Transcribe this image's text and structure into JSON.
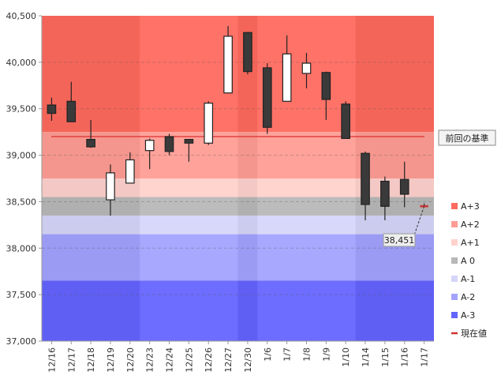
{
  "chart_data": {
    "type": "candlestick",
    "categories": [
      "12/16",
      "12/17",
      "12/18",
      "12/19",
      "12/20",
      "12/23",
      "12/24",
      "12/25",
      "12/26",
      "12/27",
      "12/30",
      "1/6",
      "1/7",
      "1/8",
      "1/9",
      "1/10",
      "1/14",
      "1/15",
      "1/16",
      "1/17"
    ],
    "candles": [
      {
        "date": "12/16",
        "open": 39540,
        "high": 39620,
        "low": 39370,
        "close": 39450
      },
      {
        "date": "12/17",
        "open": 39580,
        "high": 39790,
        "low": 39360,
        "close": 39360
      },
      {
        "date": "12/18",
        "open": 39170,
        "high": 39380,
        "low": 39080,
        "close": 39090
      },
      {
        "date": "12/19",
        "open": 38520,
        "high": 38900,
        "low": 38350,
        "close": 38810
      },
      {
        "date": "12/20",
        "open": 38700,
        "high": 39030,
        "low": 38700,
        "close": 38950
      },
      {
        "date": "12/23",
        "open": 39050,
        "high": 39180,
        "low": 38850,
        "close": 39160
      },
      {
        "date": "12/24",
        "open": 39200,
        "high": 39230,
        "low": 39000,
        "close": 39040
      },
      {
        "date": "12/25",
        "open": 39170,
        "high": 39170,
        "low": 38930,
        "close": 39130
      },
      {
        "date": "12/26",
        "open": 39130,
        "high": 39580,
        "low": 39110,
        "close": 39560
      },
      {
        "date": "12/27",
        "open": 39670,
        "high": 40390,
        "low": 39670,
        "close": 40280
      },
      {
        "date": "12/30",
        "open": 40320,
        "high": 40320,
        "low": 39870,
        "close": 39900
      },
      {
        "date": "1/6",
        "open": 39940,
        "high": 39990,
        "low": 39230,
        "close": 39300
      },
      {
        "date": "1/7",
        "open": 39580,
        "high": 40290,
        "low": 39580,
        "close": 40090
      },
      {
        "date": "1/8",
        "open": 39880,
        "high": 40100,
        "low": 39720,
        "close": 39990
      },
      {
        "date": "1/9",
        "open": 39890,
        "high": 39900,
        "low": 39380,
        "close": 39600
      },
      {
        "date": "1/10",
        "open": 39550,
        "high": 39580,
        "low": 39180,
        "close": 39180
      },
      {
        "date": "1/14",
        "open": 39020,
        "high": 39040,
        "low": 38300,
        "close": 38470
      },
      {
        "date": "1/15",
        "open": 38720,
        "high": 38770,
        "low": 38300,
        "close": 38450
      },
      {
        "date": "1/16",
        "open": 38740,
        "high": 38930,
        "low": 38440,
        "close": 38580
      },
      {
        "date": "1/17",
        "open": 38460,
        "high": 38480,
        "low": 38440,
        "close": 38451
      }
    ],
    "ylim": [
      37000,
      40500
    ],
    "yticks": [
      37000,
      37500,
      38000,
      38500,
      39000,
      39500,
      40000,
      40500
    ],
    "ytick_labels": [
      "37,000",
      "37,500",
      "38,000",
      "38,500",
      "39,000",
      "39,500",
      "40,000",
      "40,500"
    ],
    "bands": [
      {
        "label": "A+3",
        "from": 39250,
        "to": 40500,
        "color": "#ff6a5e"
      },
      {
        "label": "A+2",
        "from": 38750,
        "to": 39250,
        "color": "#ff9d94"
      },
      {
        "label": "A+1",
        "from": 38550,
        "to": 38750,
        "color": "#ffd2cd"
      },
      {
        "label": "A 0",
        "from": 38350,
        "to": 38550,
        "color": "#b8b8b8"
      },
      {
        "label": "A-1",
        "from": 38150,
        "to": 38350,
        "color": "#d6d6fa"
      },
      {
        "label": "A-2",
        "from": 37650,
        "to": 38150,
        "color": "#a3a3ff"
      },
      {
        "label": "A-3",
        "from": 37000,
        "to": 37650,
        "color": "#6464ff"
      }
    ],
    "week_groups": [
      [
        0,
        4
      ],
      [
        5,
        9
      ],
      [
        10,
        10
      ],
      [
        11,
        15
      ],
      [
        16,
        19
      ]
    ],
    "reference_line": {
      "label": "前回の基準",
      "value": 39200,
      "color": "#d93030"
    },
    "current_value": {
      "label": "現在値",
      "value": 38451,
      "value_label": "38,451",
      "color": "#d03030"
    },
    "legend": [
      {
        "label": "A+3",
        "color": "#ff6a5e"
      },
      {
        "label": "A+2",
        "color": "#ff9d94"
      },
      {
        "label": "A+1",
        "color": "#ffd2cd"
      },
      {
        "label": "A 0",
        "color": "#b8b8b8"
      },
      {
        "label": "A-1",
        "color": "#d6d6fa"
      },
      {
        "label": "A-2",
        "color": "#a3a3ff"
      },
      {
        "label": "A-3",
        "color": "#6464ff"
      },
      {
        "label": "現在値",
        "color": "#d03030",
        "kind": "line"
      }
    ],
    "grid": true,
    "legend_position": "right"
  }
}
